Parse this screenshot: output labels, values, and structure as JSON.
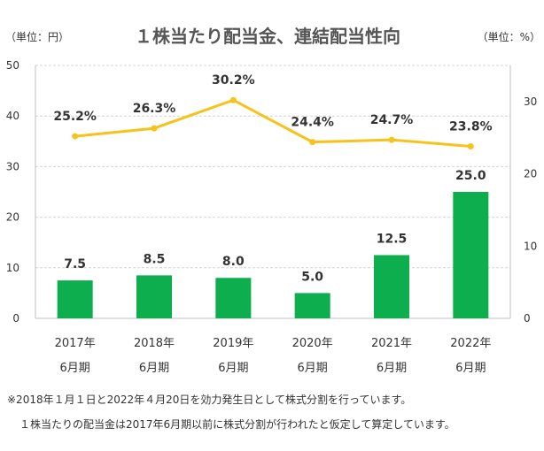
{
  "chart_data": {
    "type": "bar+line",
    "title": "１株当たり配当金、連結配当性向",
    "left_unit_label": "（単位：円）",
    "right_unit_label": "（単位：%）",
    "categories": [
      [
        "2017年",
        "6月期"
      ],
      [
        "2018年",
        "6月期"
      ],
      [
        "2019年",
        "6月期"
      ],
      [
        "2020年",
        "6月期"
      ],
      [
        "2021年",
        "6月期"
      ],
      [
        "2022年",
        "6月期"
      ]
    ],
    "left_axis": {
      "min": 0,
      "max": 50,
      "ticks": [
        0,
        10,
        20,
        30,
        40,
        50
      ]
    },
    "right_axis": {
      "min": 0,
      "max": 35,
      "ticks": [
        0,
        10,
        20,
        30
      ]
    },
    "bars": {
      "axis": "left",
      "values": [
        7.5,
        8.5,
        8.0,
        5.0,
        12.5,
        25.0
      ],
      "labels": [
        "7.5",
        "8.5",
        "8.0",
        "5.0",
        "12.5",
        "25.0"
      ],
      "color": "#0cae4e"
    },
    "line": {
      "axis": "right",
      "values": [
        25.2,
        26.3,
        30.2,
        24.4,
        24.7,
        23.8
      ],
      "labels": [
        "25.2%",
        "26.3%",
        "30.2%",
        "24.4%",
        "24.7%",
        "23.8%"
      ],
      "color": "#f7c21b"
    },
    "grid": true,
    "legend": "none",
    "notes": [
      "※2018年１月１日と2022年４月20日を効力発生日として株式分割を行っています。",
      "１株当たりの配当金は2017年6月期以前に株式分割が行われたと仮定して算定しています。"
    ]
  }
}
